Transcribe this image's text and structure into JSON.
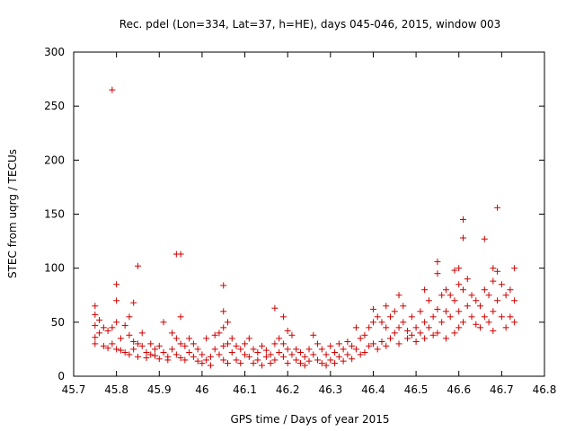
{
  "chart_data": {
    "type": "scatter",
    "title": "Rec. pdel (Lon=334, Lat=37, h=HE), days 045-046, 2015, window 003",
    "xlabel": "GPS time / Days of year 2015",
    "ylabel": "STEC from uqrg / TECUs",
    "xlim": [
      45.7,
      46.8
    ],
    "ylim": [
      0,
      300
    ],
    "x_ticks": [
      45.7,
      45.8,
      45.9,
      46.0,
      46.1,
      46.2,
      46.3,
      46.4,
      46.5,
      46.6,
      46.7,
      46.8
    ],
    "x_tick_labels": [
      "45.7",
      "45.8",
      "45.9",
      "46",
      "46.1",
      "46.2",
      "46.3",
      "46.4",
      "46.5",
      "46.6",
      "46.7",
      "46.8"
    ],
    "y_ticks": [
      0,
      50,
      100,
      150,
      200,
      250,
      300
    ],
    "y_tick_labels": [
      "0",
      "50",
      "100",
      "150",
      "200",
      "250",
      "300"
    ],
    "grid": false,
    "marker": "+",
    "color": "#cc0000",
    "series": [
      {
        "name": "STEC",
        "points": [
          [
            45.75,
            65
          ],
          [
            45.75,
            57
          ],
          [
            45.75,
            47
          ],
          [
            45.75,
            36
          ],
          [
            45.75,
            30
          ],
          [
            45.76,
            52
          ],
          [
            45.76,
            40
          ],
          [
            45.77,
            45
          ],
          [
            45.77,
            28
          ],
          [
            45.78,
            42
          ],
          [
            45.78,
            26
          ],
          [
            45.79,
            265
          ],
          [
            45.79,
            45
          ],
          [
            45.79,
            30
          ],
          [
            45.8,
            85
          ],
          [
            45.8,
            70
          ],
          [
            45.8,
            50
          ],
          [
            45.8,
            25
          ],
          [
            45.81,
            35
          ],
          [
            45.81,
            24
          ],
          [
            45.82,
            47
          ],
          [
            45.82,
            22
          ],
          [
            45.83,
            55
          ],
          [
            45.83,
            38
          ],
          [
            45.83,
            20
          ],
          [
            45.84,
            32
          ],
          [
            45.84,
            68
          ],
          [
            45.84,
            25
          ],
          [
            45.85,
            102
          ],
          [
            45.85,
            30
          ],
          [
            45.85,
            18
          ],
          [
            45.86,
            28
          ],
          [
            45.86,
            40
          ],
          [
            45.87,
            22
          ],
          [
            45.87,
            17
          ],
          [
            45.88,
            30
          ],
          [
            45.88,
            20
          ],
          [
            45.89,
            25
          ],
          [
            45.89,
            19
          ],
          [
            45.9,
            16
          ],
          [
            45.9,
            28
          ],
          [
            45.91,
            50
          ],
          [
            45.91,
            22
          ],
          [
            45.92,
            18
          ],
          [
            45.92,
            15
          ],
          [
            45.93,
            40
          ],
          [
            45.93,
            25
          ],
          [
            45.94,
            113
          ],
          [
            45.94,
            35
          ],
          [
            45.94,
            20
          ],
          [
            45.95,
            113
          ],
          [
            45.95,
            55
          ],
          [
            45.95,
            30
          ],
          [
            45.95,
            17
          ],
          [
            45.96,
            28
          ],
          [
            45.96,
            15
          ],
          [
            45.97,
            35
          ],
          [
            45.97,
            22
          ],
          [
            45.98,
            30
          ],
          [
            45.98,
            18
          ],
          [
            45.99,
            25
          ],
          [
            45.99,
            14
          ],
          [
            46.0,
            20
          ],
          [
            46.0,
            12
          ],
          [
            46.01,
            35
          ],
          [
            46.01,
            15
          ],
          [
            46.02,
            18
          ],
          [
            46.02,
            10
          ],
          [
            46.03,
            38
          ],
          [
            46.03,
            25
          ],
          [
            46.04,
            40
          ],
          [
            46.04,
            20
          ],
          [
            46.05,
            84
          ],
          [
            46.05,
            60
          ],
          [
            46.05,
            45
          ],
          [
            46.05,
            28
          ],
          [
            46.05,
            15
          ],
          [
            46.06,
            50
          ],
          [
            46.06,
            30
          ],
          [
            46.06,
            12
          ],
          [
            46.07,
            35
          ],
          [
            46.07,
            22
          ],
          [
            46.08,
            28
          ],
          [
            46.08,
            15
          ],
          [
            46.09,
            25
          ],
          [
            46.09,
            12
          ],
          [
            46.1,
            30
          ],
          [
            46.1,
            20
          ],
          [
            46.11,
            35
          ],
          [
            46.11,
            18
          ],
          [
            46.12,
            25
          ],
          [
            46.12,
            12
          ],
          [
            46.13,
            22
          ],
          [
            46.13,
            15
          ],
          [
            46.14,
            28
          ],
          [
            46.14,
            10
          ],
          [
            46.15,
            24
          ],
          [
            46.15,
            18
          ],
          [
            46.16,
            20
          ],
          [
            46.16,
            12
          ],
          [
            46.17,
            63
          ],
          [
            46.17,
            30
          ],
          [
            46.17,
            15
          ],
          [
            46.18,
            35
          ],
          [
            46.18,
            22
          ],
          [
            46.19,
            55
          ],
          [
            46.19,
            30
          ],
          [
            46.19,
            18
          ],
          [
            46.2,
            42
          ],
          [
            46.2,
            25
          ],
          [
            46.2,
            12
          ],
          [
            46.21,
            38
          ],
          [
            46.21,
            20
          ],
          [
            46.22,
            25
          ],
          [
            46.22,
            15
          ],
          [
            46.23,
            22
          ],
          [
            46.23,
            12
          ],
          [
            46.24,
            18
          ],
          [
            46.24,
            10
          ],
          [
            46.25,
            25
          ],
          [
            46.25,
            14
          ],
          [
            46.26,
            38
          ],
          [
            46.26,
            20
          ],
          [
            46.27,
            30
          ],
          [
            46.27,
            15
          ],
          [
            46.28,
            25
          ],
          [
            46.28,
            12
          ],
          [
            46.29,
            20
          ],
          [
            46.29,
            10
          ],
          [
            46.3,
            28
          ],
          [
            46.3,
            15
          ],
          [
            46.31,
            22
          ],
          [
            46.31,
            12
          ],
          [
            46.32,
            30
          ],
          [
            46.32,
            18
          ],
          [
            46.33,
            25
          ],
          [
            46.33,
            14
          ],
          [
            46.34,
            32
          ],
          [
            46.34,
            20
          ],
          [
            46.35,
            28
          ],
          [
            46.35,
            16
          ],
          [
            46.36,
            45
          ],
          [
            46.36,
            25
          ],
          [
            46.37,
            35
          ],
          [
            46.37,
            20
          ],
          [
            46.38,
            38
          ],
          [
            46.38,
            22
          ],
          [
            46.39,
            45
          ],
          [
            46.39,
            28
          ],
          [
            46.4,
            62
          ],
          [
            46.4,
            50
          ],
          [
            46.4,
            30
          ],
          [
            46.41,
            55
          ],
          [
            46.41,
            25
          ],
          [
            46.42,
            50
          ],
          [
            46.42,
            32
          ],
          [
            46.43,
            65
          ],
          [
            46.43,
            45
          ],
          [
            46.43,
            28
          ],
          [
            46.44,
            55
          ],
          [
            46.44,
            35
          ],
          [
            46.45,
            60
          ],
          [
            46.45,
            40
          ],
          [
            46.46,
            75
          ],
          [
            46.46,
            45
          ],
          [
            46.46,
            30
          ],
          [
            46.47,
            65
          ],
          [
            46.47,
            50
          ],
          [
            46.48,
            42
          ],
          [
            46.48,
            35
          ],
          [
            46.49,
            55
          ],
          [
            46.49,
            38
          ],
          [
            46.5,
            45
          ],
          [
            46.5,
            32
          ],
          [
            46.51,
            60
          ],
          [
            46.51,
            40
          ],
          [
            46.52,
            80
          ],
          [
            46.52,
            50
          ],
          [
            46.52,
            35
          ],
          [
            46.53,
            70
          ],
          [
            46.53,
            45
          ],
          [
            46.54,
            55
          ],
          [
            46.54,
            38
          ],
          [
            46.55,
            106
          ],
          [
            46.55,
            95
          ],
          [
            46.55,
            62
          ],
          [
            46.55,
            40
          ],
          [
            46.56,
            75
          ],
          [
            46.56,
            50
          ],
          [
            46.57,
            80
          ],
          [
            46.57,
            60
          ],
          [
            46.57,
            35
          ],
          [
            46.58,
            75
          ],
          [
            46.58,
            55
          ],
          [
            46.59,
            98
          ],
          [
            46.59,
            70
          ],
          [
            46.59,
            40
          ],
          [
            46.6,
            100
          ],
          [
            46.6,
            85
          ],
          [
            46.6,
            60
          ],
          [
            46.6,
            45
          ],
          [
            46.61,
            145
          ],
          [
            46.61,
            128
          ],
          [
            46.61,
            80
          ],
          [
            46.61,
            50
          ],
          [
            46.62,
            90
          ],
          [
            46.62,
            65
          ],
          [
            46.63,
            75
          ],
          [
            46.63,
            55
          ],
          [
            46.64,
            70
          ],
          [
            46.64,
            48
          ],
          [
            46.65,
            65
          ],
          [
            46.65,
            45
          ],
          [
            46.66,
            127
          ],
          [
            46.66,
            80
          ],
          [
            46.66,
            55
          ],
          [
            46.67,
            75
          ],
          [
            46.67,
            50
          ],
          [
            46.68,
            100
          ],
          [
            46.68,
            88
          ],
          [
            46.68,
            60
          ],
          [
            46.68,
            42
          ],
          [
            46.69,
            156
          ],
          [
            46.69,
            97
          ],
          [
            46.69,
            70
          ],
          [
            46.7,
            85
          ],
          [
            46.7,
            55
          ],
          [
            46.71,
            75
          ],
          [
            46.71,
            45
          ],
          [
            46.72,
            80
          ],
          [
            46.72,
            55
          ],
          [
            46.73,
            100
          ],
          [
            46.73,
            70
          ],
          [
            46.73,
            50
          ]
        ]
      }
    ]
  }
}
